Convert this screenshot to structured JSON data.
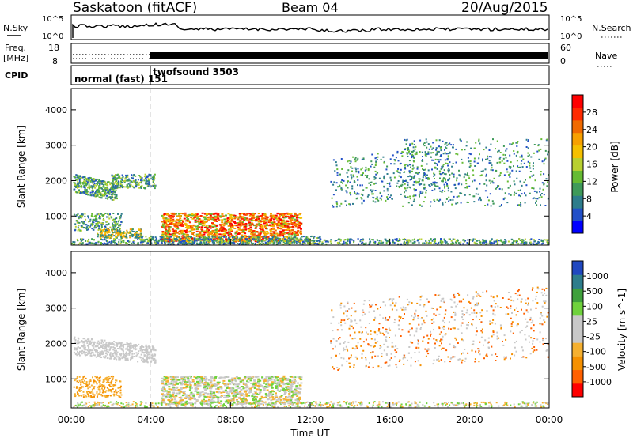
{
  "header": {
    "station": "Saskatoon (fitACF)",
    "beam": "Beam 04",
    "date": "20/Aug/2015"
  },
  "strip_labels": {
    "nsky": "N.Sky",
    "freq_line1": "Freq.",
    "freq_line2": "[MHz]",
    "cpid": "CPID",
    "nsearch": "N.Search",
    "nave": "Nave",
    "noise_top_tick": "10^5",
    "noise_bottom_tick": "10^0",
    "noise_top_tick_right": "10^5",
    "noise_bottom_tick_right": "10^0",
    "freq_top_tick": "18",
    "freq_bottom_tick": "8",
    "nave_top_tick": "60",
    "nave_bottom_tick": "0",
    "cpid_modes": [
      {
        "label": "normal (fast)",
        "id": "151",
        "start_hour": 0
      },
      {
        "label": "twofsound",
        "id": "3503",
        "start_hour": 4
      }
    ]
  },
  "colors": {
    "power_scale": [
      "#0000ff",
      "#2250c8",
      "#2e7d8c",
      "#3f9a5a",
      "#66bb33",
      "#b8d030",
      "#f5c000",
      "#f7a000",
      "#f06a00",
      "#ff2a00",
      "#ff0000"
    ],
    "velocity_scale": [
      "#ff0000",
      "#ff6000",
      "#f59000",
      "#f5b030",
      "#c8c8c8",
      "#c8c8c8",
      "#6fd23c",
      "#3fa03c",
      "#2e7d8c",
      "#2048c0"
    ],
    "mode_change_line": "#c8c8c8"
  },
  "chart_data": [
    {
      "type": "heatmap",
      "name": "power",
      "ylabel": "Slant Range [km]",
      "ylim": [
        180,
        4600
      ],
      "xlim_hours": [
        0,
        24
      ],
      "yticks": [
        1000,
        2000,
        3000,
        4000
      ],
      "colorbar_label": "Power [dB]",
      "colorbar_ticks": [
        4,
        8,
        12,
        16,
        20,
        24,
        28
      ],
      "colorbar_range": [
        0,
        32
      ]
    },
    {
      "type": "heatmap",
      "name": "velocity",
      "ylabel": "Slant Range [km]",
      "ylim": [
        180,
        4600
      ],
      "xlim_hours": [
        0,
        24
      ],
      "yticks": [
        1000,
        2000,
        3000,
        4000
      ],
      "xticks": [
        "00:00",
        "04:00",
        "08:00",
        "12:00",
        "16:00",
        "20:00",
        "00:00"
      ],
      "xlabel": "Time UT",
      "colorbar_label": "Velocity [m s^-1]",
      "colorbar_ticks": [
        "1000",
        "500",
        "100",
        "25",
        "-25",
        "-100",
        "-500",
        "-1000"
      ]
    }
  ]
}
